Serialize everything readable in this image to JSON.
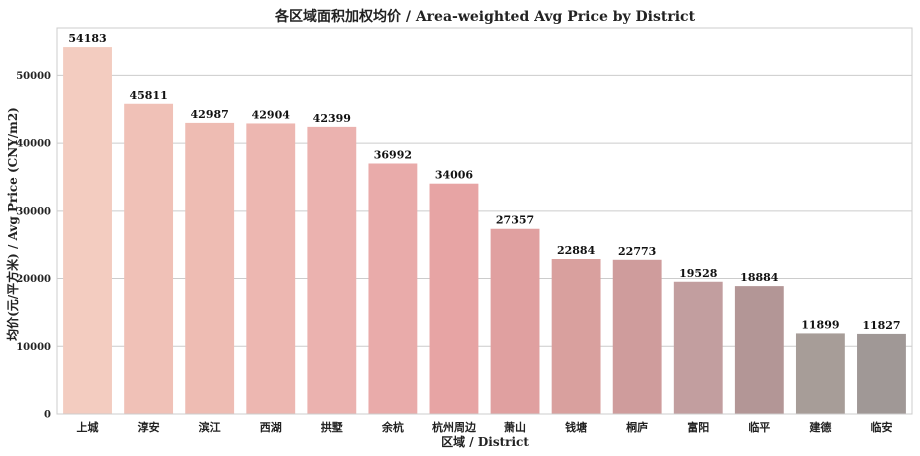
{
  "chart_data": {
    "type": "bar",
    "title": "各区域面积加权均价 / Area-weighted Avg Price by District",
    "xlabel": "区域 / District",
    "ylabel": "均价(元/平方米) / Avg Price (CNY/m2)",
    "ylim": [
      0,
      57000
    ],
    "yticks": [
      0,
      10000,
      20000,
      30000,
      40000,
      50000
    ],
    "grid": true,
    "categories": [
      "上城",
      "淳安",
      "滨江",
      "西湖",
      "拱墅",
      "余杭",
      "杭州周边",
      "萧山",
      "钱塘",
      "桐庐",
      "富阳",
      "临平",
      "建德",
      "临安"
    ],
    "values": [
      54183,
      45811,
      42987,
      42904,
      42399,
      36992,
      34006,
      27357,
      22884,
      22773,
      19528,
      18884,
      11899,
      11827
    ],
    "colors": [
      "#f3ccc0",
      "#f0c1b7",
      "#eebcb3",
      "#edb7b1",
      "#ebb2af",
      "#e9abaa",
      "#e7a4a4",
      "#e0a0a0",
      "#d9a09e",
      "#cf9c9c",
      "#c29e9f",
      "#b39696",
      "#a79d98",
      "#a09896"
    ]
  }
}
